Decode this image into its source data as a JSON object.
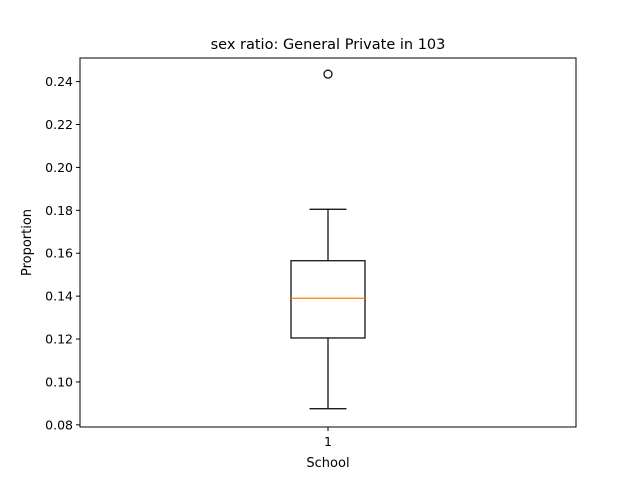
{
  "chart_data": {
    "type": "box",
    "title": "sex ratio: General Private in 103",
    "xlabel": "School",
    "ylabel": "Proportion",
    "categories": [
      "1"
    ],
    "ylim": [
      0.079,
      0.251
    ],
    "yticks": [
      0.08,
      0.1,
      0.12,
      0.14,
      0.16,
      0.18,
      0.2,
      0.22,
      0.24
    ],
    "ytick_labels": [
      "0.08",
      "0.10",
      "0.12",
      "0.14",
      "0.16",
      "0.18",
      "0.20",
      "0.22",
      "0.24"
    ],
    "grid": false,
    "boxes": [
      {
        "category": "1",
        "whisker_low": 0.0875,
        "q1": 0.1205,
        "median": 0.139,
        "q3": 0.1565,
        "whisker_high": 0.1805,
        "outliers": [
          0.2435
        ]
      }
    ],
    "colors": {
      "box": "#000000",
      "median": "#ff7f0e",
      "outlier": "#000000"
    }
  }
}
